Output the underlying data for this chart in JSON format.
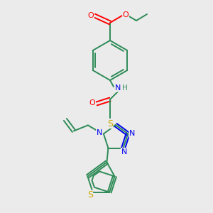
{
  "background_color": "#ebebeb",
  "C": "#2e8b57",
  "N": "#0000ee",
  "O": "#ff0000",
  "S": "#ccaa00",
  "bond_width": 1.4,
  "font_size": 7.5
}
